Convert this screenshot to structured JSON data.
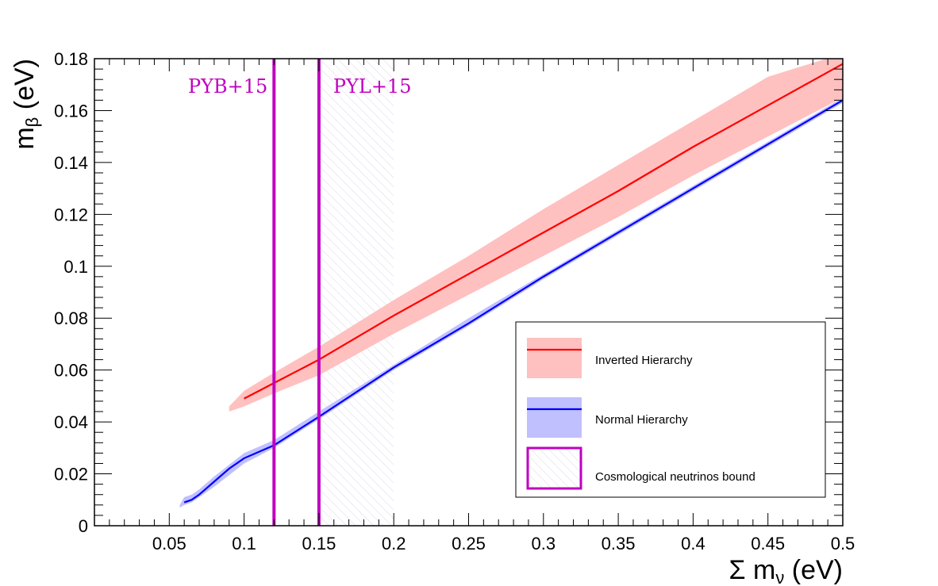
{
  "chart_data": {
    "type": "line",
    "xlabel_main": "Σ m",
    "xlabel_sub": "ν",
    "xlabel_unit": " (eV)",
    "ylabel_main": "m",
    "ylabel_sub": "β",
    "ylabel_unit": " (eV)",
    "xlim": [
      0,
      0.5
    ],
    "ylim": [
      0,
      0.18
    ],
    "xticks": [
      0.05,
      0.1,
      0.15,
      0.2,
      0.25,
      0.3,
      0.35,
      0.4,
      0.45,
      0.5
    ],
    "xtick_labels": [
      "0.05",
      "0.1",
      "0.15",
      "0.2",
      "0.25",
      "0.3",
      "0.35",
      "0.4",
      "0.45",
      "0.5"
    ],
    "yticks": [
      0,
      0.02,
      0.04,
      0.06,
      0.08,
      0.1,
      0.12,
      0.14,
      0.16,
      0.18
    ],
    "ytick_labels": [
      "0",
      "0.02",
      "0.04",
      "0.06",
      "0.08",
      "0.1",
      "0.12",
      "0.14",
      "0.16",
      "0.18"
    ],
    "grid": false,
    "legend_position": "bottom-right",
    "series": [
      {
        "name": "Inverted Hierarchy",
        "color": "#ff0000",
        "band_color": "#ffc0c0",
        "x": [
          0.1,
          0.11,
          0.12,
          0.13,
          0.15,
          0.2,
          0.25,
          0.3,
          0.35,
          0.4,
          0.45,
          0.5
        ],
        "y": [
          0.049,
          0.052,
          0.055,
          0.058,
          0.064,
          0.081,
          0.097,
          0.113,
          0.129,
          0.146,
          0.162,
          0.178
        ],
        "band_x": [
          0.09,
          0.1,
          0.12,
          0.15,
          0.2,
          0.25,
          0.3,
          0.35,
          0.4,
          0.45,
          0.5
        ],
        "band_lower": [
          0.044,
          0.046,
          0.051,
          0.058,
          0.074,
          0.089,
          0.104,
          0.119,
          0.135,
          0.15,
          0.165
        ],
        "band_upper": [
          0.046,
          0.052,
          0.059,
          0.069,
          0.087,
          0.104,
          0.122,
          0.139,
          0.156,
          0.173,
          0.182
        ]
      },
      {
        "name": "Normal Hierarchy",
        "color": "#0000ff",
        "band_color": "#c0c0ff",
        "x": [
          0.06,
          0.065,
          0.07,
          0.08,
          0.09,
          0.1,
          0.12,
          0.15,
          0.2,
          0.25,
          0.3,
          0.35,
          0.4,
          0.45,
          0.5
        ],
        "y": [
          0.009,
          0.01,
          0.012,
          0.017,
          0.022,
          0.026,
          0.031,
          0.042,
          0.061,
          0.078,
          0.096,
          0.113,
          0.13,
          0.147,
          0.164
        ],
        "band_x": [
          0.057,
          0.06,
          0.065,
          0.07,
          0.08,
          0.1,
          0.12,
          0.15,
          0.2,
          0.25,
          0.3,
          0.35,
          0.4,
          0.45,
          0.5
        ],
        "band_lower": [
          0.007,
          0.008,
          0.009,
          0.011,
          0.015,
          0.024,
          0.03,
          0.041,
          0.06,
          0.077,
          0.095,
          0.112,
          0.129,
          0.146,
          0.163
        ],
        "band_upper": [
          0.008,
          0.011,
          0.012,
          0.014,
          0.019,
          0.028,
          0.033,
          0.044,
          0.062,
          0.08,
          0.097,
          0.114,
          0.131,
          0.148,
          0.165
        ]
      }
    ],
    "bound_label": "Cosmological neutrinos bound",
    "bound_color": "#c000c0",
    "bound_lines": [
      {
        "label": "PYB+15",
        "x": 0.12
      },
      {
        "label": "PYL+15",
        "x": 0.15
      }
    ],
    "excluded_region": {
      "x_from": 0.15,
      "x_to": 0.2
    }
  }
}
